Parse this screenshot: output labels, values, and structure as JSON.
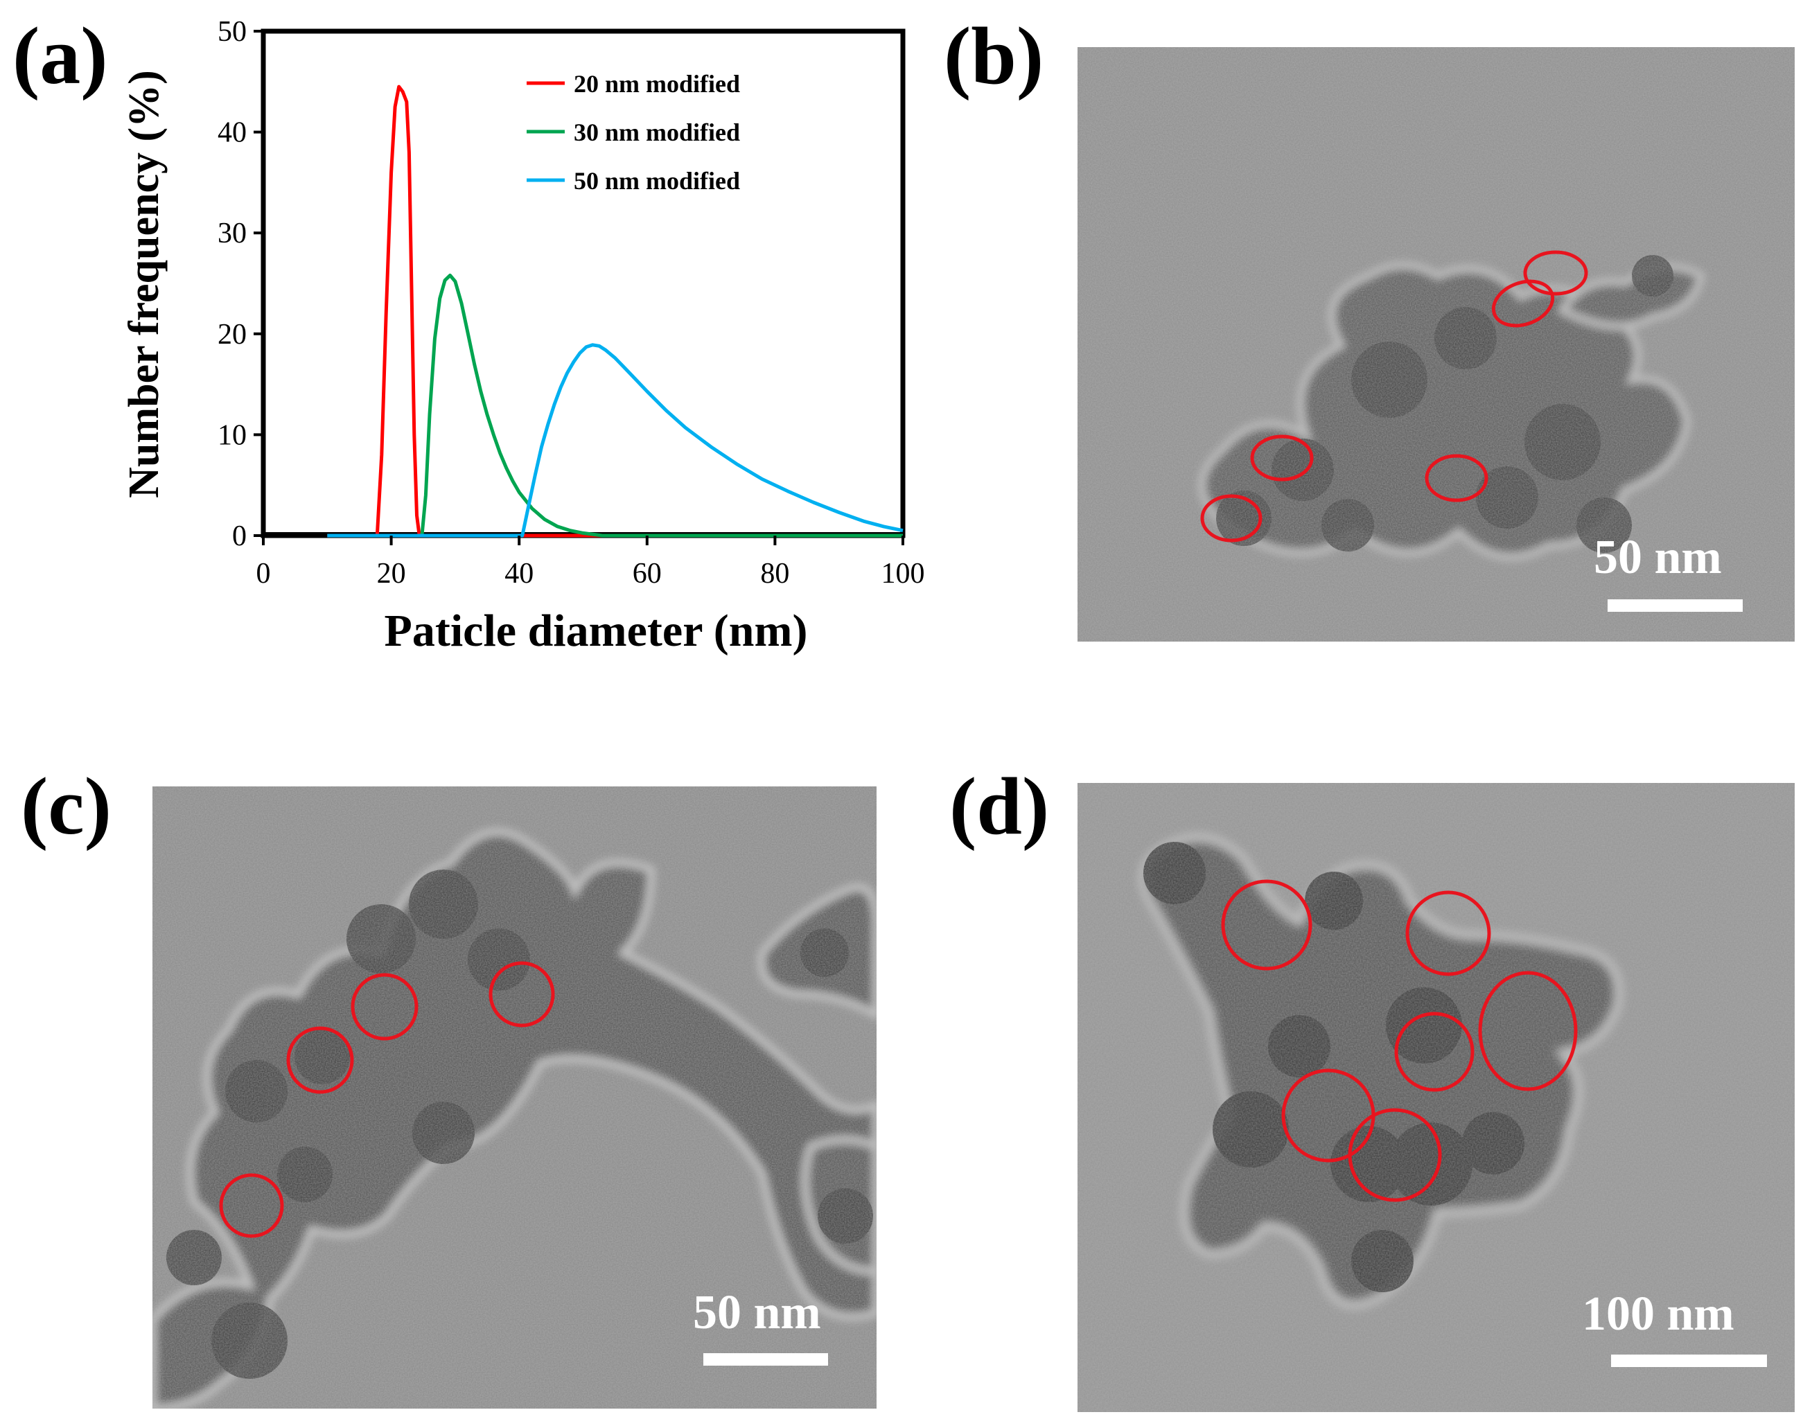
{
  "panels": {
    "a": {
      "label": "(a)",
      "chart_data": {
        "type": "line",
        "title": "",
        "xlabel": "Paticle diameter (nm)",
        "ylabel": "Number frequency (%)",
        "xlim": [
          0,
          100
        ],
        "ylim": [
          0,
          50
        ],
        "xticks": [
          "0",
          "20",
          "40",
          "60",
          "80",
          "100"
        ],
        "yticks": [
          "0",
          "10",
          "20",
          "30",
          "40",
          "50"
        ],
        "grid": false,
        "legend_position": "top-right",
        "series": [
          {
            "name": "20 nm modified",
            "color": "#ff0000",
            "x": [
              10,
              17.8,
              18.5,
              19.2,
              20.0,
              20.6,
              21.2,
              21.8,
              22.4,
              22.8,
              23.2,
              23.6,
              24.0,
              24.4,
              100
            ],
            "y": [
              0,
              0,
              8,
              22,
              36,
              42.5,
              44.5,
              44.0,
              43.0,
              38,
              24,
              10,
              2,
              0,
              0
            ]
          },
          {
            "name": "30 nm modified",
            "color": "#00a550",
            "x": [
              24.8,
              25.4,
              26.0,
              26.8,
              27.6,
              28.4,
              29.2,
              30.0,
              31.0,
              32.0,
              33.0,
              34.0,
              35.0,
              36.0,
              37.0,
              38.0,
              39.0,
              40.0,
              42.0,
              44.0,
              46.0,
              48.0,
              50.0,
              53.0,
              100
            ],
            "y": [
              0,
              4,
              12,
              19.5,
              23.5,
              25.3,
              25.8,
              25.2,
              23.0,
              20.0,
              17.0,
              14.3,
              12.0,
              10.0,
              8.2,
              6.7,
              5.4,
              4.3,
              2.7,
              1.6,
              0.9,
              0.5,
              0.25,
              0,
              0
            ]
          },
          {
            "name": "50 nm modified",
            "color": "#00b0f0",
            "x": [
              10,
              40.5,
              41.5,
              42.5,
              43.5,
              44.5,
              45.5,
              46.5,
              47.5,
              48.5,
              49.5,
              50.5,
              51.5,
              52.5,
              53.5,
              55,
              57,
              60,
              63,
              66,
              70,
              74,
              78,
              82,
              86,
              90,
              94,
              97,
              100
            ],
            "y": [
              0,
              0,
              3,
              6,
              8.8,
              11,
              13,
              14.7,
              16.1,
              17.2,
              18.1,
              18.7,
              18.9,
              18.8,
              18.4,
              17.6,
              16.3,
              14.3,
              12.4,
              10.7,
              8.8,
              7.1,
              5.6,
              4.4,
              3.3,
              2.3,
              1.4,
              0.9,
              0.5
            ]
          }
        ]
      }
    },
    "b": {
      "label": "(b)",
      "scale_label": "50 nm"
    },
    "c": {
      "label": "(c)",
      "scale_label": "50 nm"
    },
    "d": {
      "label": "(d)",
      "scale_label": "100 nm"
    }
  },
  "colors": {
    "marker_circle": "#e8141e",
    "tem_background": "#8c8c8c",
    "particle_dark": "#3c3c3c"
  }
}
